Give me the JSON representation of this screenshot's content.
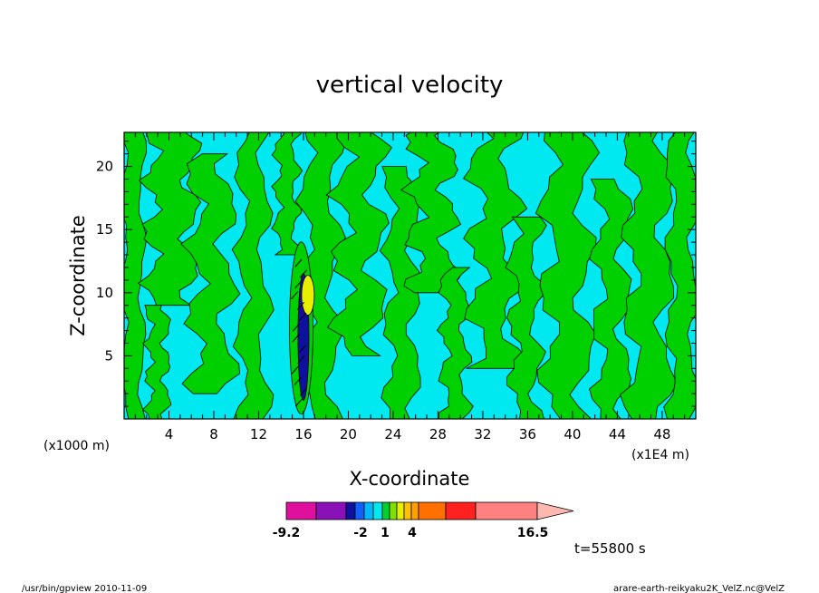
{
  "chart_data": {
    "type": "heatmap",
    "title": "vertical velocity",
    "xlabel": "X-coordinate",
    "ylabel": "Z-coordinate",
    "x_units_note": "(x1E4 m)",
    "y_units_note": "(x1000 m)",
    "x_ticks": [
      "4",
      "8",
      "12",
      "16",
      "20",
      "24",
      "28",
      "32",
      "36",
      "40",
      "44",
      "48"
    ],
    "y_ticks": [
      "5",
      "10",
      "15",
      "20"
    ],
    "xlim": [
      0,
      51
    ],
    "ylim": [
      0,
      22.7
    ],
    "colorbar": {
      "tick_labels": [
        "-9.2",
        "-2",
        "1",
        "4",
        "16.5"
      ],
      "colors": [
        "#e0109e",
        "#8a10b8",
        "#1010a0",
        "#1060ff",
        "#00b8ff",
        "#00e8f0",
        "#00d030",
        "#80e000",
        "#e8f000",
        "#ffc000",
        "#ffa000",
        "#ff7000",
        "#ff2020",
        "#ff8080",
        "#ffb8b0"
      ]
    },
    "field_colors": {
      "background": "#00e8f0",
      "positive_band": "#00d000",
      "core_positive": "#e8f000",
      "core_negative": "#1010a0"
    },
    "time_label": "t=55800 s"
  },
  "footer": {
    "left": "/usr/bin/gpview   2010-11-09",
    "right": "arare-earth-reikyaku2K_VelZ.nc@VelZ"
  }
}
